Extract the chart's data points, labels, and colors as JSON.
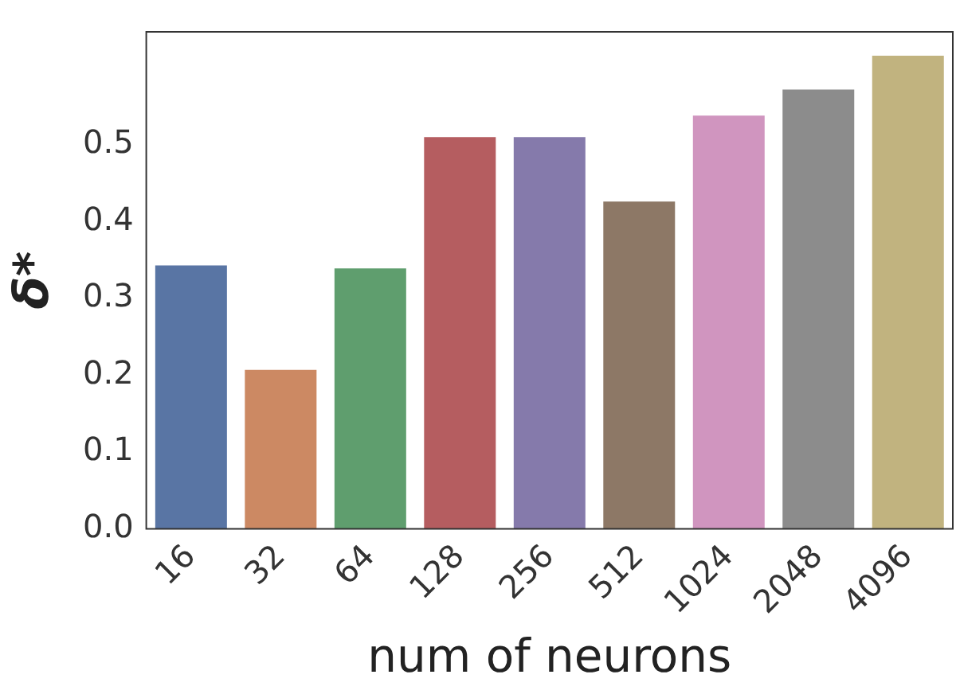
{
  "chart_data": {
    "type": "bar",
    "xlabel": "num of neurons",
    "ylabel": "δ*",
    "categories": [
      "16",
      "32",
      "64",
      "128",
      "256",
      "512",
      "1024",
      "2048",
      "4096"
    ],
    "values": [
      0.343,
      0.207,
      0.339,
      0.51,
      0.51,
      0.426,
      0.538,
      0.572,
      0.616
    ],
    "colors": [
      "#5975a4",
      "#cc8963",
      "#5f9e6e",
      "#b55d60",
      "#857aab",
      "#8d7866",
      "#d095bf",
      "#8c8c8c",
      "#c1b37f"
    ],
    "ylim": [
      0,
      0.647
    ],
    "yticks": [
      {
        "value": 0,
        "label": "0.0"
      },
      {
        "value": 0.1,
        "label": "0.1"
      },
      {
        "value": 0.2,
        "label": "0.2"
      },
      {
        "value": 0.3,
        "label": "0.3"
      },
      {
        "value": 0.4,
        "label": "0.4"
      },
      {
        "value": 0.5,
        "label": "0.5"
      }
    ],
    "grid": false,
    "legend": false
  }
}
